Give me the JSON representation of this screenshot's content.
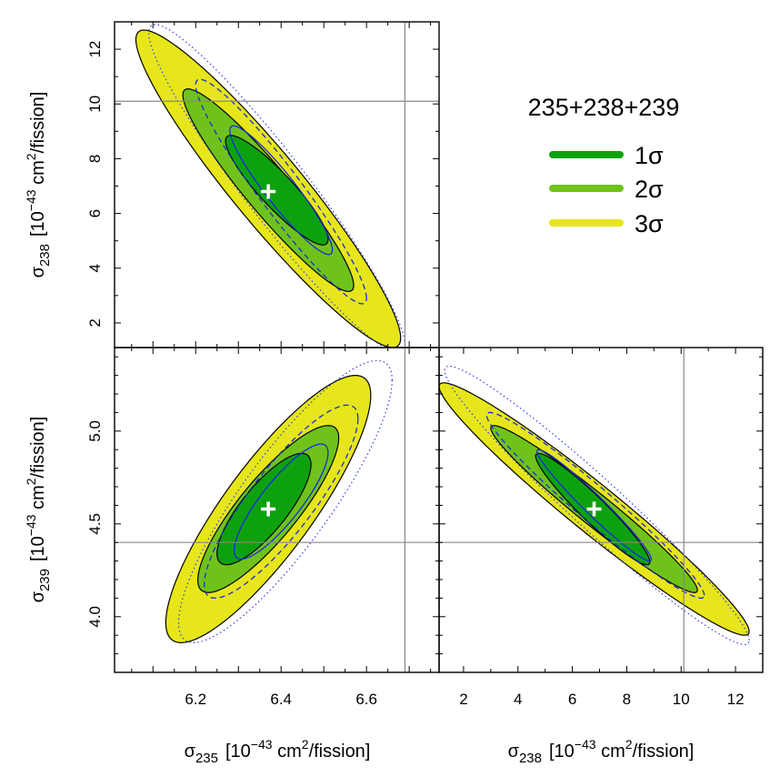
{
  "legend": {
    "title": "235+238+239",
    "entries": [
      {
        "label": "1σ",
        "color": "#0ea10e"
      },
      {
        "label": "2σ",
        "color": "#6fc21a"
      },
      {
        "label": "3σ",
        "color": "#e6e61a"
      }
    ]
  },
  "labels": {
    "s235": {
      "sym": "σ",
      "sub": "235",
      "unit": "[10",
      "exp": "−43",
      "rest": " cm",
      "exp2": "2",
      "tail": "/fission]"
    },
    "s238": {
      "sym": "σ",
      "sub": "238",
      "unit": "[10",
      "exp": "−43",
      "rest": " cm",
      "exp2": "2",
      "tail": "/fission]"
    },
    "s239": {
      "sym": "σ",
      "sub": "239",
      "unit": "[10",
      "exp": "−43",
      "rest": " cm",
      "exp2": "2",
      "tail": "/fission]"
    }
  },
  "chart_data": [
    {
      "type": "contour",
      "panel": "top-left",
      "x_variable": "sigma_235",
      "y_variable": "sigma_238",
      "xlim": [
        6.01,
        6.77
      ],
      "ylim": [
        1.1,
        13.0
      ],
      "yticks": [
        2,
        4,
        6,
        8,
        10,
        12
      ],
      "yticklabels": [
        "2",
        "4",
        "6",
        "8",
        "10",
        "12"
      ],
      "best_fit": {
        "x": 6.37,
        "y": 6.8
      },
      "reference_lines": {
        "x": 6.69,
        "y": 10.1
      },
      "contours": [
        {
          "level": "3σ",
          "style": "filled",
          "color": "#e6e61a",
          "cx": 6.37,
          "cy": 6.9,
          "a": 0.31,
          "b": 5.8,
          "r": -0.94
        },
        {
          "level": "2σ",
          "style": "filled",
          "color": "#6fc21a",
          "cx": 6.37,
          "cy": 6.85,
          "a": 0.2,
          "b": 3.7,
          "r": -0.94
        },
        {
          "level": "1σ",
          "style": "filled",
          "color": "#0ea10e",
          "cx": 6.39,
          "cy": 6.85,
          "a": 0.12,
          "b": 2.0,
          "r": -0.9
        },
        {
          "level": "1σ",
          "style": "solid-blue",
          "cx": 6.4,
          "cy": 6.85,
          "a": 0.12,
          "b": 2.35,
          "r": -0.93
        },
        {
          "level": "2σ",
          "style": "dashed-blue",
          "cx": 6.4,
          "cy": 6.8,
          "a": 0.2,
          "b": 4.1,
          "r": -0.95
        },
        {
          "level": "3σ",
          "style": "dotted-blue",
          "cx": 6.39,
          "cy": 6.9,
          "a": 0.3,
          "b": 6.0,
          "r": -0.95
        }
      ]
    },
    {
      "type": "contour",
      "panel": "bottom-left",
      "x_variable": "sigma_235",
      "y_variable": "sigma_239",
      "xlim": [
        6.01,
        6.77
      ],
      "ylim": [
        3.7,
        5.45
      ],
      "xticks": [
        6.2,
        6.4,
        6.6
      ],
      "xticklabels": [
        "6.2",
        "6.4",
        "6.6"
      ],
      "yticks": [
        4.0,
        4.5,
        5.0
      ],
      "yticklabels": [
        "4.0",
        "4.5",
        "5.0"
      ],
      "best_fit": {
        "x": 6.37,
        "y": 4.58
      },
      "reference_lines": {
        "x": 6.69,
        "y": 4.4
      },
      "contours": [
        {
          "level": "3σ",
          "style": "filled",
          "color": "#e6e61a",
          "cx": 6.37,
          "cy": 4.58,
          "a": 0.24,
          "b": 0.72,
          "r": 0.85
        },
        {
          "level": "2σ",
          "style": "filled",
          "color": "#6fc21a",
          "cx": 6.37,
          "cy": 4.58,
          "a": 0.165,
          "b": 0.45,
          "r": 0.85
        },
        {
          "level": "1σ",
          "style": "filled",
          "color": "#0ea10e",
          "cx": 6.36,
          "cy": 4.58,
          "a": 0.11,
          "b": 0.3,
          "r": 0.8
        },
        {
          "level": "1σ",
          "style": "solid-blue",
          "cx": 6.4,
          "cy": 4.62,
          "a": 0.11,
          "b": 0.31,
          "r": 0.85
        },
        {
          "level": "2σ",
          "style": "dashed-blue",
          "cx": 6.4,
          "cy": 4.62,
          "a": 0.18,
          "b": 0.52,
          "r": 0.86
        },
        {
          "level": "3σ",
          "style": "dotted-blue",
          "cx": 6.41,
          "cy": 4.62,
          "a": 0.25,
          "b": 0.76,
          "r": 0.86
        }
      ]
    },
    {
      "type": "contour",
      "panel": "bottom-right",
      "x_variable": "sigma_238",
      "y_variable": "sigma_239",
      "xlim": [
        1.1,
        13.0
      ],
      "ylim": [
        3.7,
        5.45
      ],
      "xticks": [
        2,
        4,
        6,
        8,
        10,
        12
      ],
      "xticklabels": [
        "2",
        "4",
        "6",
        "8",
        "10",
        "12"
      ],
      "best_fit": {
        "x": 6.8,
        "y": 4.58
      },
      "reference_lines": {
        "x": 10.1,
        "y": 4.4
      },
      "contours": [
        {
          "level": "3σ",
          "style": "filled",
          "color": "#e6e61a",
          "cx": 6.8,
          "cy": 4.58,
          "a": 5.7,
          "b": 0.68,
          "r": -0.97
        },
        {
          "level": "2σ",
          "style": "filled",
          "color": "#6fc21a",
          "cx": 6.8,
          "cy": 4.58,
          "a": 3.8,
          "b": 0.45,
          "r": -0.97
        },
        {
          "level": "1σ",
          "style": "filled",
          "color": "#0ea10e",
          "cx": 6.75,
          "cy": 4.58,
          "a": 2.1,
          "b": 0.3,
          "r": -0.95
        },
        {
          "level": "1σ",
          "style": "solid-blue",
          "cx": 6.8,
          "cy": 4.6,
          "a": 2.1,
          "b": 0.3,
          "r": -0.97
        },
        {
          "level": "2σ",
          "style": "dashed-blue",
          "cx": 6.85,
          "cy": 4.6,
          "a": 4.0,
          "b": 0.5,
          "r": -0.97
        },
        {
          "level": "3σ",
          "style": "dotted-blue",
          "cx": 6.9,
          "cy": 4.6,
          "a": 5.6,
          "b": 0.75,
          "r": -0.97
        }
      ]
    }
  ]
}
